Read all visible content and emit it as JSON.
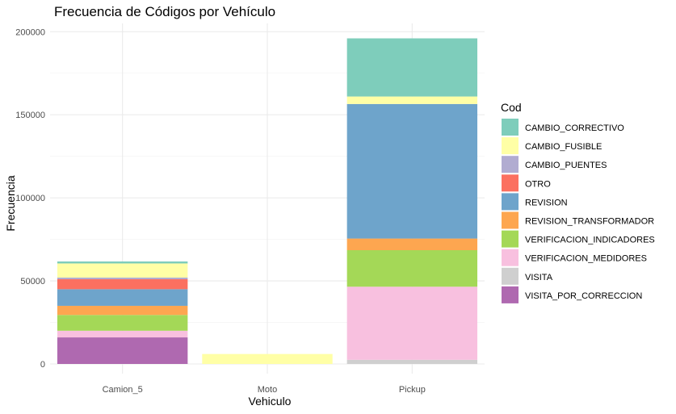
{
  "chart_data": {
    "type": "bar",
    "stacked": true,
    "title": "Frecuencia de Códigos por Vehículo",
    "xlabel": "Vehiculo",
    "ylabel": "Frecuencia",
    "categories": [
      "Camion_5",
      "Moto",
      "Pickup"
    ],
    "ylim": [
      0,
      205000
    ],
    "yticks": [
      0,
      50000,
      100000,
      150000,
      200000
    ],
    "grid": true,
    "legend": {
      "title": "Cod",
      "position": "right"
    },
    "series": [
      {
        "name": "VISITA_POR_CORRECCION",
        "color": "#af69b0",
        "values": [
          16000,
          0,
          0
        ]
      },
      {
        "name": "VISITA",
        "color": "#cfcfcf",
        "values": [
          0,
          0,
          2500
        ]
      },
      {
        "name": "VERIFICACION_MEDIDORES",
        "color": "#f8c0df",
        "values": [
          4000,
          0,
          44000
        ]
      },
      {
        "name": "VERIFICACION_INDICADORES",
        "color": "#a4d857",
        "values": [
          9500,
          0,
          22000
        ]
      },
      {
        "name": "REVISION_TRANSFORMADOR",
        "color": "#fda650",
        "values": [
          5500,
          0,
          7000
        ]
      },
      {
        "name": "REVISION",
        "color": "#6ea4cb",
        "values": [
          10000,
          0,
          81000
        ]
      },
      {
        "name": "OTRO",
        "color": "#fb7060",
        "values": [
          6000,
          0,
          0
        ]
      },
      {
        "name": "CAMBIO_PUENTES",
        "color": "#b1acd1",
        "values": [
          1000,
          0,
          0
        ]
      },
      {
        "name": "CAMBIO_FUSIBLE",
        "color": "#ffffa6",
        "values": [
          8500,
          6000,
          4500
        ]
      },
      {
        "name": "CAMBIO_CORRECTIVO",
        "color": "#7ecdbb",
        "values": [
          1200,
          0,
          35000
        ]
      }
    ]
  }
}
